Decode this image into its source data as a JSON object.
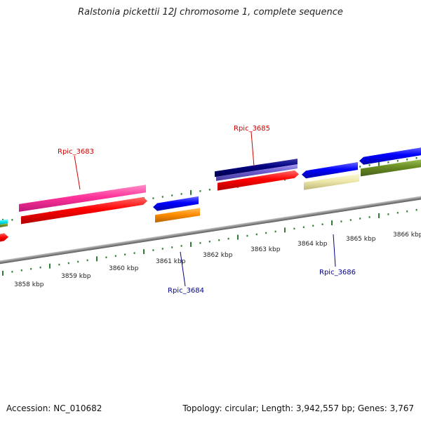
{
  "title": "Ralstonia pickettii 12J chromosome 1, complete sequence",
  "footer": {
    "accession": "Accession: NC_010682",
    "topology": "Topology: circular; Length: 3,942,557 bp; Genes: 3,767"
  },
  "ticks": [
    "3858 kbp",
    "3859 kbp",
    "3860 kbp",
    "3861 kbp",
    "3862 kbp",
    "3863 kbp",
    "3864 kbp",
    "3865 kbp",
    "3866 kbp"
  ],
  "gene_labels": [
    {
      "text": "Rpic_3683",
      "color": "#cc0000"
    },
    {
      "text": "Rpic_3685",
      "color": "#cc0000"
    },
    {
      "text": "Rpic_3684",
      "color": "#00008b"
    },
    {
      "text": "Rpic_3686",
      "color": "#00008b"
    }
  ],
  "colors": {
    "backbone": "#8c8c8c",
    "tick": "#2e7d32",
    "cds_red": "#ff0000",
    "gene_pink": "#ff3399",
    "gene_blue": "#0000ff",
    "gene_navy": "#000080",
    "gene_slate": "#6a5acd",
    "gene_orange": "#ff8c00",
    "gene_khaki": "#eee8aa",
    "gene_olive": "#6b8e23",
    "gene_cyan": "#00e5ee"
  }
}
